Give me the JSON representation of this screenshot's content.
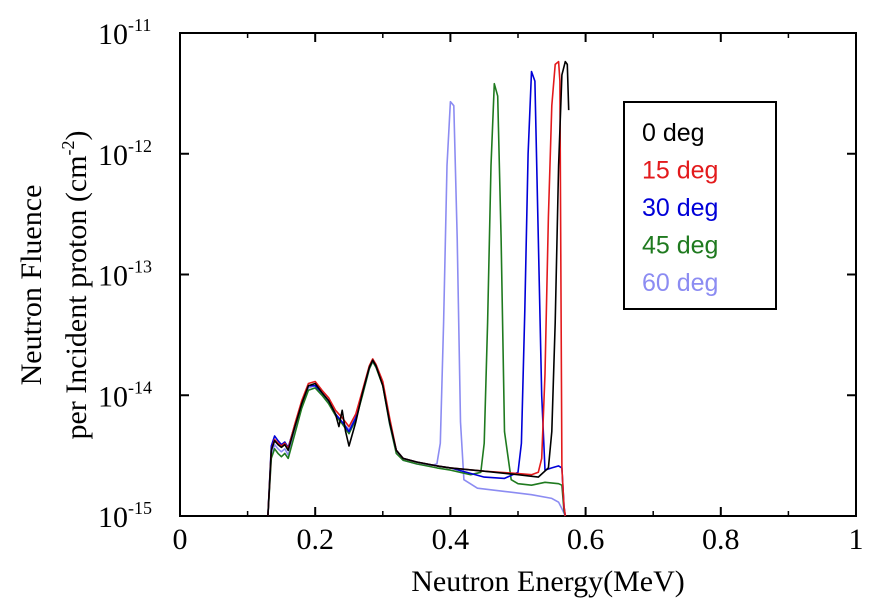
{
  "chart_data": {
    "type": "line",
    "title": "",
    "xlabel": "Neutron Energy(MeV)",
    "ylabel_line1": "Neutron Fluence",
    "ylabel_line2": "per Incident proton (cm",
    "ylabel_exp": "-2",
    "ylabel_close": ")",
    "xlim": [
      0,
      1
    ],
    "ylim": [
      1e-15,
      1e-11
    ],
    "yscale": "log",
    "grid": false,
    "legend_position": "top-right",
    "x_ticks": [
      {
        "value": 0,
        "label": "0"
      },
      {
        "value": 0.2,
        "label": "0.2"
      },
      {
        "value": 0.4,
        "label": "0.4"
      },
      {
        "value": 0.6,
        "label": "0.6"
      },
      {
        "value": 0.8,
        "label": "0.8"
      },
      {
        "value": 1,
        "label": "1"
      }
    ],
    "y_ticks": [
      {
        "exp": -15,
        "base": "10",
        "sup": "-15"
      },
      {
        "exp": -14,
        "base": "10",
        "sup": "-14"
      },
      {
        "exp": -13,
        "base": "10",
        "sup": "-13"
      },
      {
        "exp": -12,
        "base": "10",
        "sup": "-12"
      },
      {
        "exp": -11,
        "base": "10",
        "sup": "-11"
      }
    ],
    "series": [
      {
        "name": "0 deg",
        "color": "#000000",
        "points": [
          [
            0.13,
            1e-15
          ],
          [
            0.135,
            3.5e-15
          ],
          [
            0.14,
            4.2e-15
          ],
          [
            0.145,
            3.9e-15
          ],
          [
            0.15,
            3.7e-15
          ],
          [
            0.155,
            3.9e-15
          ],
          [
            0.16,
            3.5e-15
          ],
          [
            0.17,
            5.5e-15
          ],
          [
            0.18,
            8.5e-15
          ],
          [
            0.19,
            1.2e-14
          ],
          [
            0.2,
            1.25e-14
          ],
          [
            0.21,
            1.05e-14
          ],
          [
            0.22,
            9e-15
          ],
          [
            0.23,
            7e-15
          ],
          [
            0.235,
            5.5e-15
          ],
          [
            0.24,
            7.5e-15
          ],
          [
            0.245,
            5e-15
          ],
          [
            0.25,
            3.8e-15
          ],
          [
            0.26,
            6e-15
          ],
          [
            0.27,
            1.05e-14
          ],
          [
            0.28,
            1.7e-14
          ],
          [
            0.285,
            1.95e-14
          ],
          [
            0.29,
            1.75e-14
          ],
          [
            0.3,
            1.2e-14
          ],
          [
            0.31,
            6e-15
          ],
          [
            0.32,
            3.5e-15
          ],
          [
            0.33,
            3e-15
          ],
          [
            0.35,
            2.8e-15
          ],
          [
            0.38,
            2.6e-15
          ],
          [
            0.4,
            2.5e-15
          ],
          [
            0.45,
            2.35e-15
          ],
          [
            0.5,
            2.2e-15
          ],
          [
            0.53,
            2.1e-15
          ],
          [
            0.545,
            2.5e-15
          ],
          [
            0.55,
            5e-15
          ],
          [
            0.555,
            4e-14
          ],
          [
            0.56,
            8e-13
          ],
          [
            0.565,
            4.5e-12
          ],
          [
            0.57,
            5.8e-12
          ],
          [
            0.573,
            5.5e-12
          ],
          [
            0.575,
            2.3e-12
          ]
        ]
      },
      {
        "name": "15 deg",
        "color": "#e31a1c",
        "points": [
          [
            0.13,
            1e-15
          ],
          [
            0.135,
            3.5e-15
          ],
          [
            0.14,
            4.3e-15
          ],
          [
            0.145,
            4e-15
          ],
          [
            0.15,
            3.8e-15
          ],
          [
            0.155,
            4e-15
          ],
          [
            0.16,
            3.6e-15
          ],
          [
            0.17,
            5.8e-15
          ],
          [
            0.18,
            9e-15
          ],
          [
            0.19,
            1.25e-14
          ],
          [
            0.2,
            1.3e-14
          ],
          [
            0.21,
            1.1e-14
          ],
          [
            0.22,
            9.5e-15
          ],
          [
            0.23,
            7.5e-15
          ],
          [
            0.24,
            6.5e-15
          ],
          [
            0.25,
            5.5e-15
          ],
          [
            0.26,
            7e-15
          ],
          [
            0.27,
            1.1e-14
          ],
          [
            0.28,
            1.75e-14
          ],
          [
            0.285,
            2e-14
          ],
          [
            0.29,
            1.8e-14
          ],
          [
            0.3,
            1.3e-14
          ],
          [
            0.31,
            6.5e-15
          ],
          [
            0.32,
            3.5e-15
          ],
          [
            0.33,
            3e-15
          ],
          [
            0.35,
            2.8e-15
          ],
          [
            0.38,
            2.6e-15
          ],
          [
            0.4,
            2.5e-15
          ],
          [
            0.45,
            2.35e-15
          ],
          [
            0.5,
            2.25e-15
          ],
          [
            0.52,
            2.2e-15
          ],
          [
            0.53,
            2.3e-15
          ],
          [
            0.535,
            3e-15
          ],
          [
            0.54,
            1.5e-14
          ],
          [
            0.545,
            3e-13
          ],
          [
            0.55,
            2.5e-12
          ],
          [
            0.555,
            5.5e-12
          ],
          [
            0.56,
            5.8e-12
          ],
          [
            0.562,
            4e-12
          ],
          [
            0.565,
            2.5e-15
          ],
          [
            0.568,
            1.2e-15
          ],
          [
            0.57,
            1e-15
          ]
        ]
      },
      {
        "name": "30 deg",
        "color": "#0000d8",
        "points": [
          [
            0.13,
            1e-15
          ],
          [
            0.135,
            3.8e-15
          ],
          [
            0.14,
            4.6e-15
          ],
          [
            0.145,
            4.2e-15
          ],
          [
            0.15,
            3.9e-15
          ],
          [
            0.155,
            4.1e-15
          ],
          [
            0.16,
            3.7e-15
          ],
          [
            0.17,
            5.7e-15
          ],
          [
            0.18,
            8.8e-15
          ],
          [
            0.19,
            1.2e-14
          ],
          [
            0.2,
            1.2e-14
          ],
          [
            0.21,
            1.05e-14
          ],
          [
            0.22,
            9e-15
          ],
          [
            0.23,
            7e-15
          ],
          [
            0.24,
            6e-15
          ],
          [
            0.25,
            5e-15
          ],
          [
            0.26,
            6.5e-15
          ],
          [
            0.27,
            1.05e-14
          ],
          [
            0.28,
            1.7e-14
          ],
          [
            0.285,
            1.95e-14
          ],
          [
            0.29,
            1.75e-14
          ],
          [
            0.3,
            1.25e-14
          ],
          [
            0.31,
            6e-15
          ],
          [
            0.32,
            3.5e-15
          ],
          [
            0.33,
            3e-15
          ],
          [
            0.35,
            2.8e-15
          ],
          [
            0.38,
            2.6e-15
          ],
          [
            0.4,
            2.5e-15
          ],
          [
            0.45,
            2.1e-15
          ],
          [
            0.48,
            2.05e-15
          ],
          [
            0.5,
            2.3e-15
          ],
          [
            0.505,
            4e-15
          ],
          [
            0.51,
            5e-14
          ],
          [
            0.515,
            1e-12
          ],
          [
            0.52,
            4.8e-12
          ],
          [
            0.525,
            4e-12
          ],
          [
            0.53,
            2e-13
          ],
          [
            0.535,
            1e-14
          ],
          [
            0.54,
            2.4e-15
          ],
          [
            0.55,
            2.5e-15
          ],
          [
            0.56,
            2.6e-15
          ],
          [
            0.565,
            2.5e-15
          ],
          [
            0.568,
            1.2e-15
          ],
          [
            0.57,
            1e-15
          ]
        ]
      },
      {
        "name": "45 deg",
        "color": "#1f7a1f",
        "points": [
          [
            0.13,
            1e-15
          ],
          [
            0.135,
            3e-15
          ],
          [
            0.14,
            3.6e-15
          ],
          [
            0.145,
            3.3e-15
          ],
          [
            0.15,
            3.1e-15
          ],
          [
            0.155,
            3.3e-15
          ],
          [
            0.16,
            3e-15
          ],
          [
            0.17,
            4.8e-15
          ],
          [
            0.18,
            7.8e-15
          ],
          [
            0.19,
            1.1e-14
          ],
          [
            0.2,
            1.15e-14
          ],
          [
            0.21,
            1e-14
          ],
          [
            0.22,
            8.5e-15
          ],
          [
            0.23,
            6.8e-15
          ],
          [
            0.24,
            5.8e-15
          ],
          [
            0.25,
            4.8e-15
          ],
          [
            0.26,
            6.3e-15
          ],
          [
            0.27,
            1e-14
          ],
          [
            0.28,
            1.65e-14
          ],
          [
            0.285,
            1.9e-14
          ],
          [
            0.29,
            1.7e-14
          ],
          [
            0.3,
            1.2e-14
          ],
          [
            0.31,
            5.8e-15
          ],
          [
            0.32,
            3.3e-15
          ],
          [
            0.33,
            2.9e-15
          ],
          [
            0.35,
            2.7e-15
          ],
          [
            0.38,
            2.5e-15
          ],
          [
            0.4,
            2.4e-15
          ],
          [
            0.43,
            2.2e-15
          ],
          [
            0.445,
            2.3e-15
          ],
          [
            0.45,
            4e-15
          ],
          [
            0.455,
            4e-14
          ],
          [
            0.46,
            8e-13
          ],
          [
            0.465,
            3.8e-12
          ],
          [
            0.47,
            3e-12
          ],
          [
            0.475,
            2e-13
          ],
          [
            0.48,
            5e-15
          ],
          [
            0.49,
            2e-15
          ],
          [
            0.5,
            1.85e-15
          ],
          [
            0.52,
            1.8e-15
          ],
          [
            0.54,
            1.9e-15
          ],
          [
            0.56,
            1.85e-15
          ],
          [
            0.565,
            1.8e-15
          ],
          [
            0.568,
            1.1e-15
          ],
          [
            0.57,
            1e-15
          ]
        ]
      },
      {
        "name": "60 deg",
        "color": "#8c8cf2",
        "points": [
          [
            0.13,
            1e-15
          ],
          [
            0.135,
            3.2e-15
          ],
          [
            0.14,
            3.9e-15
          ],
          [
            0.145,
            3.6e-15
          ],
          [
            0.15,
            3.4e-15
          ],
          [
            0.155,
            3.6e-15
          ],
          [
            0.16,
            3.2e-15
          ],
          [
            0.17,
            5.1e-15
          ],
          [
            0.18,
            8.2e-15
          ],
          [
            0.19,
            1.15e-14
          ],
          [
            0.2,
            1.2e-14
          ],
          [
            0.21,
            1.02e-14
          ],
          [
            0.22,
            8.8e-15
          ],
          [
            0.23,
            7e-15
          ],
          [
            0.24,
            6e-15
          ],
          [
            0.25,
            5.2e-15
          ],
          [
            0.26,
            6.6e-15
          ],
          [
            0.27,
            1.05e-14
          ],
          [
            0.28,
            1.7e-14
          ],
          [
            0.285,
            1.95e-14
          ],
          [
            0.29,
            1.75e-14
          ],
          [
            0.3,
            1.25e-14
          ],
          [
            0.31,
            6e-15
          ],
          [
            0.32,
            3.4e-15
          ],
          [
            0.33,
            2.9e-15
          ],
          [
            0.35,
            2.7e-15
          ],
          [
            0.37,
            2.6e-15
          ],
          [
            0.38,
            2.7e-15
          ],
          [
            0.385,
            4e-15
          ],
          [
            0.39,
            4e-14
          ],
          [
            0.395,
            8e-13
          ],
          [
            0.4,
            2.7e-12
          ],
          [
            0.405,
            2.5e-12
          ],
          [
            0.41,
            2e-13
          ],
          [
            0.415,
            6e-15
          ],
          [
            0.42,
            2e-15
          ],
          [
            0.44,
            1.7e-15
          ],
          [
            0.48,
            1.6e-15
          ],
          [
            0.52,
            1.5e-15
          ],
          [
            0.55,
            1.4e-15
          ],
          [
            0.56,
            1.3e-15
          ],
          [
            0.565,
            1.15e-15
          ],
          [
            0.57,
            1e-15
          ]
        ]
      }
    ]
  }
}
